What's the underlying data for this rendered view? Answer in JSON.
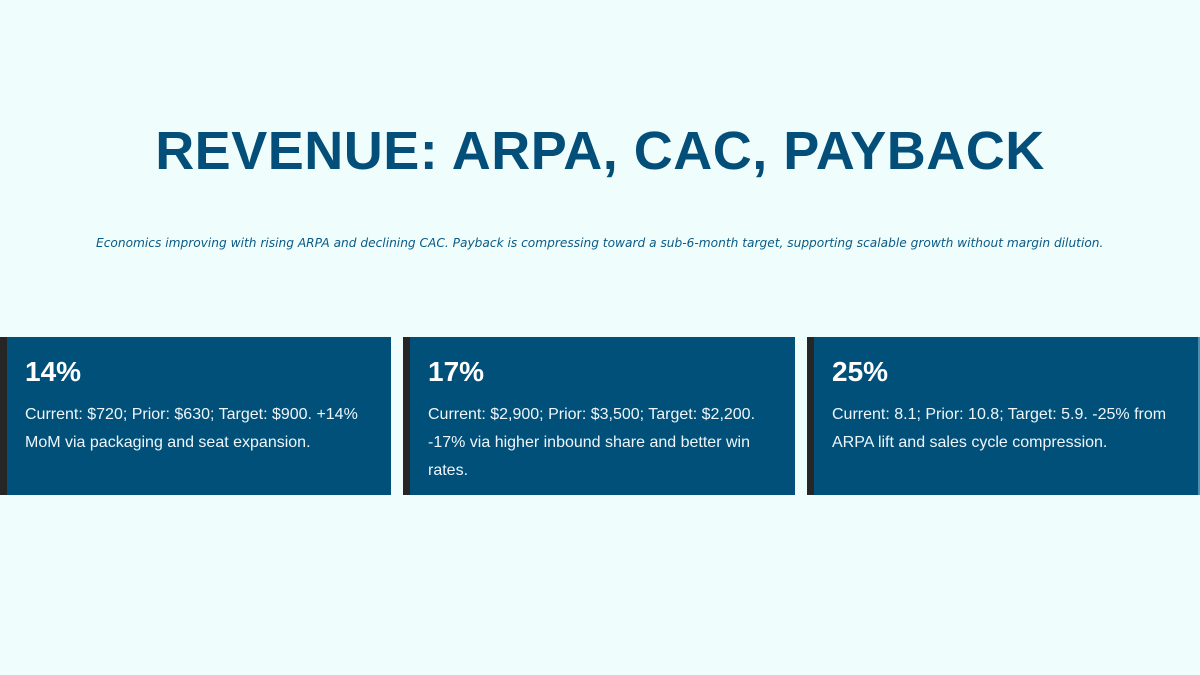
{
  "slide": {
    "title": "REVENUE: ARPA, CAC, PAYBACK",
    "subtitle": "Economics improving with rising ARPA and declining CAC. Payback is compressing toward a sub-6-month target, supporting scalable growth without margin dilution."
  },
  "cards": [
    {
      "value": "14%",
      "description": "Current: $720; Prior: $630; Target: $900. +14% MoM via packaging and seat expansion."
    },
    {
      "value": "17%",
      "description": "Current: $2,900; Prior: $3,500; Target: $2,200. -17% via higher inbound share and better win rates."
    },
    {
      "value": "25%",
      "description": "Current: 8.1; Prior: 10.8; Target: 5.9. -25% from ARPA lift and sales cycle compression."
    }
  ],
  "colors": {
    "background": "#effefc",
    "title": "#034f79",
    "subtitle": "#0b5a86",
    "card_background": "#01507a",
    "card_accent_bar": "#262626",
    "card_text": "#ffffff"
  }
}
